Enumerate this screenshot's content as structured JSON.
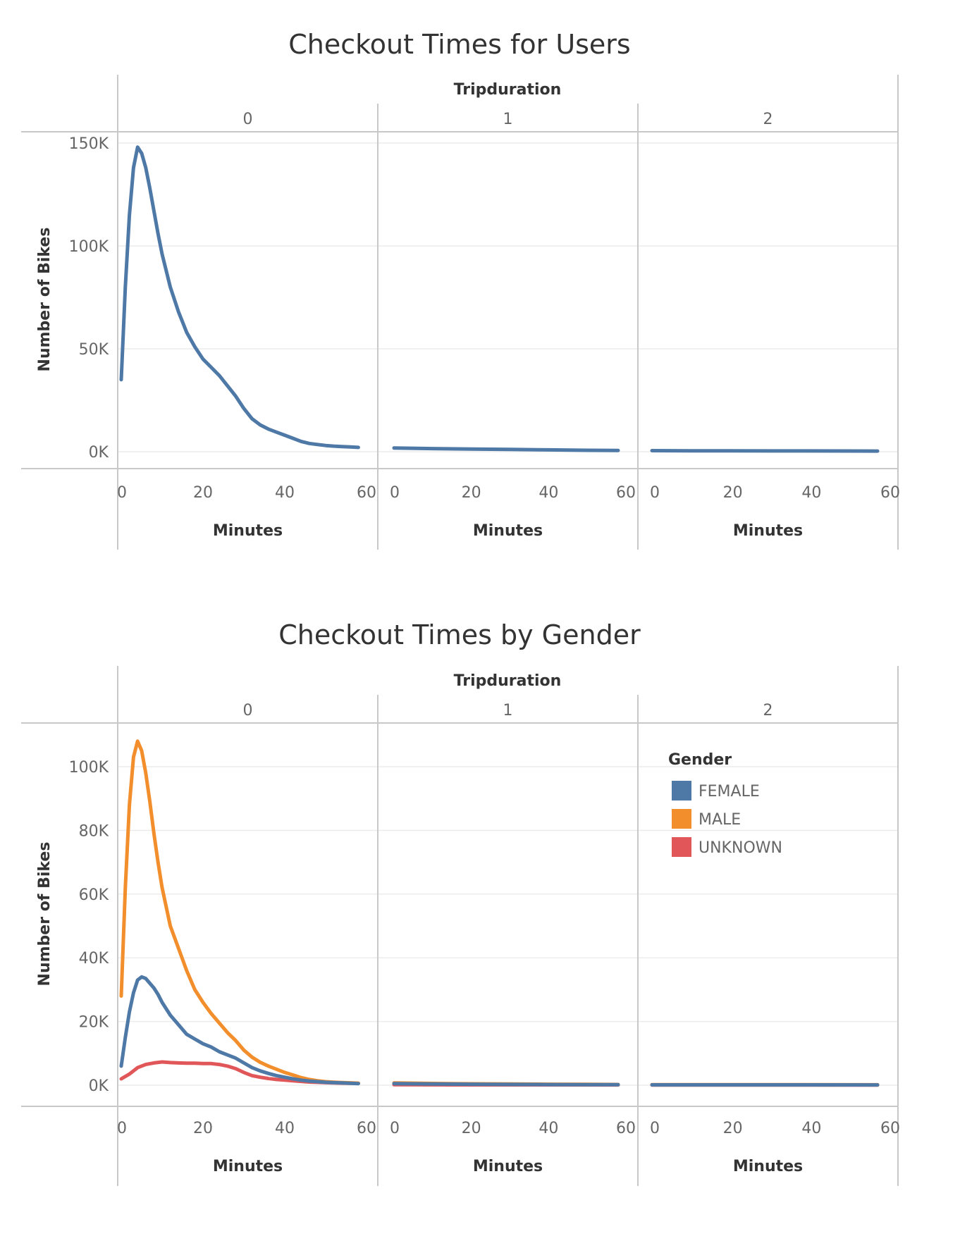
{
  "colors": {
    "female": "#4e79a7",
    "male": "#f28e2b",
    "unknown": "#e15759",
    "grid": "#ececec",
    "divider": "#c8c8c8",
    "text": "#333333",
    "tick": "#666666"
  },
  "chart_data": [
    {
      "type": "line",
      "title": "Checkout Times for Users",
      "facet_header": "Tripduration",
      "facets": [
        "0",
        "1",
        "2"
      ],
      "xlabel": "Minutes",
      "ylabel": "Number of Bikes",
      "xlim": [
        0,
        60
      ],
      "x_ticks": [
        0,
        20,
        40,
        60
      ],
      "ylim": [
        0,
        150000
      ],
      "y_ticks": [
        0,
        50000,
        100000,
        150000
      ],
      "y_tick_labels": [
        "0K",
        "50K",
        "100K",
        "150K"
      ],
      "grid": true,
      "legend": null,
      "series": [
        {
          "color": "female",
          "panels": [
            {
              "x": [
                0,
                1,
                2,
                3,
                4,
                5,
                6,
                7,
                8,
                9,
                10,
                12,
                14,
                16,
                18,
                20,
                22,
                24,
                26,
                28,
                30,
                32,
                34,
                36,
                38,
                40,
                42,
                44,
                46,
                48,
                50,
                52,
                54,
                56,
                58
              ],
              "y": [
                35000,
                80000,
                115000,
                138000,
                148000,
                145000,
                138000,
                128000,
                117000,
                106000,
                96000,
                80000,
                68000,
                58000,
                51000,
                45000,
                41000,
                37000,
                32000,
                27000,
                21000,
                16000,
                13000,
                11000,
                9500,
                8000,
                6500,
                5000,
                4000,
                3500,
                3000,
                2700,
                2500,
                2300,
                2100
              ]
            },
            {
              "x": [
                0,
                10,
                20,
                30,
                40,
                50,
                58
              ],
              "y": [
                1800,
                1500,
                1300,
                1100,
                900,
                700,
                600
              ]
            },
            {
              "x": [
                0,
                10,
                20,
                30,
                40,
                50,
                58
              ],
              "y": [
                500,
                450,
                400,
                380,
                360,
                340,
                320
              ]
            }
          ]
        }
      ]
    },
    {
      "type": "line",
      "title": "Checkout Times by Gender",
      "facet_header": "Tripduration",
      "facets": [
        "0",
        "1",
        "2"
      ],
      "xlabel": "Minutes",
      "ylabel": "Number of Bikes",
      "xlim": [
        0,
        60
      ],
      "x_ticks": [
        0,
        20,
        40,
        60
      ],
      "ylim": [
        0,
        110000
      ],
      "y_ticks": [
        0,
        20000,
        40000,
        60000,
        80000,
        100000
      ],
      "y_tick_labels": [
        "0K",
        "20K",
        "40K",
        "60K",
        "80K",
        "100K"
      ],
      "grid": true,
      "legend": {
        "title": "Gender",
        "placement": "top-right",
        "items": [
          {
            "label": "FEMALE",
            "color": "female"
          },
          {
            "label": "MALE",
            "color": "male"
          },
          {
            "label": "UNKNOWN",
            "color": "unknown"
          }
        ]
      },
      "series": [
        {
          "name": "UNKNOWN",
          "color": "unknown",
          "panels": [
            {
              "x": [
                0,
                2,
                4,
                6,
                8,
                10,
                12,
                14,
                16,
                18,
                20,
                22,
                24,
                26,
                28,
                30,
                32,
                34,
                36,
                38,
                40,
                42,
                44,
                46,
                48,
                50,
                52,
                54,
                56,
                58
              ],
              "y": [
                2000,
                3500,
                5500,
                6500,
                7000,
                7300,
                7100,
                7000,
                6900,
                6900,
                6800,
                6800,
                6500,
                6000,
                5200,
                4000,
                3000,
                2500,
                2100,
                1800,
                1600,
                1400,
                1200,
                1000,
                900,
                800,
                700,
                650,
                600,
                550
              ]
            },
            {
              "x": [
                0,
                20,
                40,
                58
              ],
              "y": [
                150,
                120,
                100,
                80
              ]
            },
            {
              "x": [
                0,
                20,
                40,
                58
              ],
              "y": [
                60,
                50,
                45,
                40
              ]
            }
          ]
        },
        {
          "name": "MALE",
          "color": "male",
          "panels": [
            {
              "x": [
                0,
                1,
                2,
                3,
                4,
                5,
                6,
                7,
                8,
                9,
                10,
                12,
                14,
                16,
                18,
                20,
                22,
                24,
                26,
                28,
                30,
                32,
                34,
                36,
                38,
                40,
                42,
                44,
                46,
                48,
                50,
                52,
                54,
                56,
                58
              ],
              "y": [
                28000,
                62000,
                88000,
                103000,
                108000,
                105000,
                98000,
                89000,
                79000,
                70000,
                62000,
                50000,
                43000,
                36000,
                30000,
                26000,
                22500,
                19500,
                16500,
                14000,
                11000,
                8800,
                7200,
                6000,
                5000,
                4000,
                3200,
                2400,
                1800,
                1400,
                1100,
                950,
                850,
                750,
                650
              ]
            },
            {
              "x": [
                0,
                10,
                20,
                30,
                40,
                50,
                58
              ],
              "y": [
                700,
                550,
                450,
                380,
                320,
                270,
                230
              ]
            },
            {
              "x": [
                0,
                20,
                40,
                58
              ],
              "y": [
                180,
                160,
                150,
                140
              ]
            }
          ]
        },
        {
          "name": "FEMALE",
          "color": "female",
          "panels": [
            {
              "x": [
                0,
                1,
                2,
                3,
                4,
                5,
                6,
                7,
                8,
                9,
                10,
                12,
                14,
                16,
                18,
                20,
                22,
                24,
                26,
                28,
                30,
                32,
                34,
                36,
                38,
                40,
                42,
                44,
                46,
                48,
                50,
                52,
                54,
                56,
                58
              ],
              "y": [
                6000,
                15000,
                23000,
                29000,
                33000,
                34000,
                33500,
                32000,
                30500,
                28500,
                26000,
                22000,
                19000,
                16000,
                14500,
                13000,
                12000,
                10500,
                9500,
                8500,
                7000,
                5500,
                4500,
                3700,
                3000,
                2500,
                2000,
                1600,
                1300,
                1100,
                900,
                800,
                700,
                600,
                500
              ]
            },
            {
              "x": [
                0,
                10,
                20,
                30,
                40,
                50,
                58
              ],
              "y": [
                500,
                380,
                300,
                250,
                210,
                180,
                150
              ]
            },
            {
              "x": [
                0,
                20,
                40,
                58
              ],
              "y": [
                120,
                110,
                100,
                90
              ]
            }
          ]
        }
      ]
    }
  ]
}
